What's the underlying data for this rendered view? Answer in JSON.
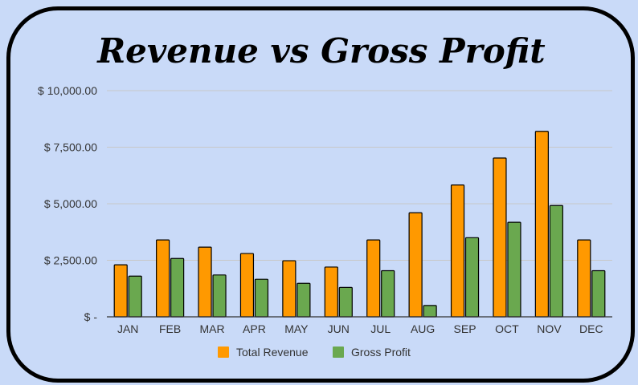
{
  "chart_data": {
    "type": "bar",
    "title": "Revenue vs Gross Profit",
    "categories": [
      "JAN",
      "FEB",
      "MAR",
      "APR",
      "MAY",
      "JUN",
      "JUL",
      "AUG",
      "SEP",
      "OCT",
      "NOV",
      "DEC"
    ],
    "series": [
      {
        "name": "Total Revenue",
        "color": "#ff9900",
        "values": [
          2300,
          3400,
          3080,
          2800,
          2480,
          2200,
          3400,
          4600,
          5830,
          7020,
          8200,
          3400
        ]
      },
      {
        "name": "Gross Profit",
        "color": "#6aa84f",
        "values": [
          1800,
          2580,
          1850,
          1660,
          1480,
          1300,
          2040,
          500,
          3500,
          4180,
          4920,
          2040
        ]
      }
    ],
    "ylim": [
      0,
      10000
    ],
    "yticks": [
      0,
      2500,
      5000,
      7500,
      10000
    ],
    "ytick_labels": [
      "$ -",
      "$ 2,500.00",
      "$ 5,000.00",
      "$ 7,500.00",
      "$ 10,000.00"
    ],
    "xlabel": "",
    "ylabel": "",
    "grid": true,
    "legend_position": "bottom"
  }
}
